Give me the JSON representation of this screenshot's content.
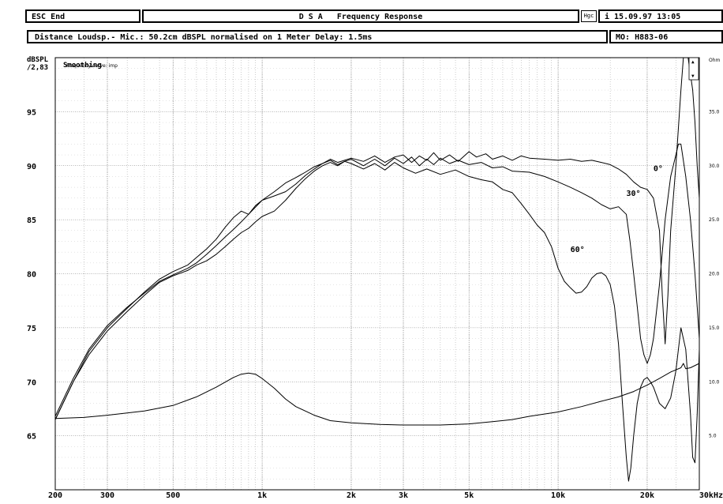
{
  "header": {
    "esc_label": "ESC End",
    "title": "D S A   Frequency Response",
    "hgc_label": "Hgc",
    "date_label": "i 15.09.97 13:05",
    "distance_info": "Distance Loudsp.- Mic.: 50.2cm dBSPL normalised on 1 Meter  Delay: 1.5ms",
    "model_label": "MO: H883-06"
  },
  "chart_data": {
    "type": "line",
    "ylabel": "dBSPL",
    "y_top_readout": "/2,83",
    "smoothing_label": "Smoothing",
    "legend_text": "Frequency curve: imp",
    "x_scale": "log",
    "xlim": [
      200,
      30000
    ],
    "ylim": [
      60,
      100
    ],
    "y2label": "Ohm",
    "y2lim": [
      0,
      40
    ],
    "x_ticks": [
      {
        "value": 200,
        "label": "200"
      },
      {
        "value": 300,
        "label": "300"
      },
      {
        "value": 500,
        "label": "500"
      },
      {
        "value": 1000,
        "label": "1k"
      },
      {
        "value": 2000,
        "label": "2k"
      },
      {
        "value": 3000,
        "label": "3k"
      },
      {
        "value": 5000,
        "label": "5k"
      },
      {
        "value": 10000,
        "label": "10k"
      },
      {
        "value": 20000,
        "label": "20k"
      },
      {
        "value": 30000,
        "label": "30kHz"
      }
    ],
    "y_ticks": [
      {
        "value": 95,
        "label": "95"
      },
      {
        "value": 90,
        "label": "90"
      },
      {
        "value": 85,
        "label": "85"
      },
      {
        "value": 80,
        "label": "80"
      },
      {
        "value": 75,
        "label": "75"
      },
      {
        "value": 70,
        "label": "70"
      },
      {
        "value": 65,
        "label": "65"
      }
    ],
    "y2_ticks": [
      {
        "value": 35,
        "label": "35.0"
      },
      {
        "value": 30,
        "label": "30.0"
      },
      {
        "value": 25,
        "label": "25.0"
      },
      {
        "value": 20,
        "label": "20.0"
      },
      {
        "value": 15,
        "label": "15.0"
      },
      {
        "value": 10,
        "label": "10.0"
      },
      {
        "value": 5,
        "label": "5.0"
      }
    ],
    "grid": true,
    "annotations": [
      {
        "text": "0°",
        "x": 21000,
        "y": 89.5
      },
      {
        "text": "30°",
        "x": 17000,
        "y": 87.2
      },
      {
        "text": "60°",
        "x": 11000,
        "y": 82.0
      }
    ],
    "series": [
      {
        "axis": "left",
        "values": [
          [
            200,
            66.5
          ],
          [
            230,
            70
          ],
          [
            260,
            72.8
          ],
          [
            300,
            75
          ],
          [
            350,
            76.8
          ],
          [
            400,
            78.3
          ],
          [
            450,
            79.5
          ],
          [
            500,
            80.2
          ],
          [
            560,
            80.8
          ],
          [
            600,
            81.5
          ],
          [
            650,
            82.3
          ],
          [
            700,
            83.2
          ],
          [
            750,
            84.3
          ],
          [
            800,
            85.2
          ],
          [
            850,
            85.8
          ],
          [
            900,
            85.5
          ],
          [
            950,
            86.3
          ],
          [
            1000,
            86.8
          ],
          [
            1100,
            87.2
          ],
          [
            1200,
            87.6
          ],
          [
            1300,
            88.3
          ],
          [
            1400,
            89.1
          ],
          [
            1500,
            89.7
          ],
          [
            1600,
            90.2
          ],
          [
            1700,
            90.6
          ],
          [
            1800,
            90.3
          ],
          [
            1900,
            90.5
          ],
          [
            2000,
            90.7
          ],
          [
            2200,
            90.4
          ],
          [
            2400,
            90.9
          ],
          [
            2600,
            90.3
          ],
          [
            2800,
            90.8
          ],
          [
            3000,
            91.0
          ],
          [
            3200,
            90.3
          ],
          [
            3400,
            90.9
          ],
          [
            3600,
            90.5
          ],
          [
            3800,
            91.2
          ],
          [
            4000,
            90.5
          ],
          [
            4300,
            91.0
          ],
          [
            4600,
            90.4
          ],
          [
            5000,
            91.3
          ],
          [
            5300,
            90.8
          ],
          [
            5700,
            91.1
          ],
          [
            6000,
            90.6
          ],
          [
            6500,
            90.9
          ],
          [
            7000,
            90.5
          ],
          [
            7500,
            90.9
          ],
          [
            8000,
            90.7
          ],
          [
            9000,
            90.6
          ],
          [
            10000,
            90.5
          ],
          [
            11000,
            90.6
          ],
          [
            12000,
            90.4
          ],
          [
            13000,
            90.5
          ],
          [
            14000,
            90.3
          ],
          [
            15000,
            90.1
          ],
          [
            16000,
            89.7
          ],
          [
            17000,
            89.2
          ],
          [
            18000,
            88.5
          ],
          [
            19000,
            88.0
          ],
          [
            20000,
            87.8
          ],
          [
            21000,
            87.0
          ],
          [
            22000,
            84.0
          ],
          [
            22500,
            78.0
          ],
          [
            23000,
            73.5
          ],
          [
            23500,
            78.0
          ],
          [
            24000,
            84.0
          ],
          [
            25000,
            90.0
          ],
          [
            26000,
            97.0
          ],
          [
            26500,
            100.0
          ],
          [
            27500,
            100.0
          ],
          [
            28500,
            97.0
          ],
          [
            29000,
            94.0
          ],
          [
            29500,
            90.0
          ],
          [
            30000,
            87.0
          ]
        ]
      },
      {
        "axis": "left",
        "values": [
          [
            200,
            66.8
          ],
          [
            230,
            70.3
          ],
          [
            260,
            73.0
          ],
          [
            300,
            75.2
          ],
          [
            350,
            76.9
          ],
          [
            400,
            78.2
          ],
          [
            450,
            79.3
          ],
          [
            500,
            79.9
          ],
          [
            560,
            80.5
          ],
          [
            600,
            81.0
          ],
          [
            650,
            81.8
          ],
          [
            700,
            82.6
          ],
          [
            750,
            83.4
          ],
          [
            800,
            84.1
          ],
          [
            850,
            84.8
          ],
          [
            900,
            85.5
          ],
          [
            1000,
            86.8
          ],
          [
            1100,
            87.6
          ],
          [
            1200,
            88.4
          ],
          [
            1300,
            88.9
          ],
          [
            1400,
            89.4
          ],
          [
            1500,
            89.9
          ],
          [
            1600,
            90.2
          ],
          [
            1700,
            90.5
          ],
          [
            1800,
            90.1
          ],
          [
            1900,
            90.4
          ],
          [
            2000,
            90.6
          ],
          [
            2200,
            90.0
          ],
          [
            2400,
            90.6
          ],
          [
            2600,
            90.0
          ],
          [
            2800,
            90.7
          ],
          [
            3000,
            90.2
          ],
          [
            3200,
            90.8
          ],
          [
            3400,
            90.0
          ],
          [
            3600,
            90.6
          ],
          [
            3800,
            90.1
          ],
          [
            4000,
            90.7
          ],
          [
            4300,
            90.2
          ],
          [
            4600,
            90.5
          ],
          [
            5000,
            90.1
          ],
          [
            5500,
            90.3
          ],
          [
            6000,
            89.8
          ],
          [
            6500,
            89.9
          ],
          [
            7000,
            89.5
          ],
          [
            8000,
            89.4
          ],
          [
            9000,
            89.0
          ],
          [
            10000,
            88.5
          ],
          [
            11000,
            88.0
          ],
          [
            12000,
            87.5
          ],
          [
            13000,
            87.0
          ],
          [
            14000,
            86.4
          ],
          [
            15000,
            86.0
          ],
          [
            16000,
            86.2
          ],
          [
            17000,
            85.5
          ],
          [
            17500,
            83.0
          ],
          [
            18000,
            80.0
          ],
          [
            18500,
            77.0
          ],
          [
            19000,
            74.0
          ],
          [
            19500,
            72.5
          ],
          [
            20000,
            71.7
          ],
          [
            20500,
            72.5
          ],
          [
            21000,
            74.0
          ],
          [
            22000,
            79.0
          ],
          [
            23000,
            85.0
          ],
          [
            24000,
            89.0
          ],
          [
            25000,
            91.0
          ],
          [
            25500,
            92.0
          ],
          [
            26000,
            92.0
          ],
          [
            27000,
            89.0
          ],
          [
            28000,
            85.0
          ],
          [
            29000,
            80.0
          ],
          [
            30000,
            74.0
          ]
        ]
      },
      {
        "axis": "left",
        "values": [
          [
            200,
            66.5
          ],
          [
            230,
            70
          ],
          [
            260,
            72.5
          ],
          [
            300,
            74.7
          ],
          [
            350,
            76.5
          ],
          [
            400,
            78.0
          ],
          [
            450,
            79.2
          ],
          [
            500,
            79.8
          ],
          [
            560,
            80.3
          ],
          [
            600,
            80.8
          ],
          [
            650,
            81.2
          ],
          [
            700,
            81.8
          ],
          [
            750,
            82.5
          ],
          [
            800,
            83.2
          ],
          [
            850,
            83.8
          ],
          [
            900,
            84.2
          ],
          [
            950,
            84.8
          ],
          [
            1000,
            85.3
          ],
          [
            1100,
            85.8
          ],
          [
            1200,
            86.8
          ],
          [
            1300,
            87.9
          ],
          [
            1400,
            88.8
          ],
          [
            1500,
            89.5
          ],
          [
            1600,
            90.0
          ],
          [
            1700,
            90.3
          ],
          [
            1800,
            90.0
          ],
          [
            1900,
            90.4
          ],
          [
            2000,
            90.2
          ],
          [
            2200,
            89.7
          ],
          [
            2400,
            90.2
          ],
          [
            2600,
            89.6
          ],
          [
            2800,
            90.3
          ],
          [
            3000,
            89.8
          ],
          [
            3300,
            89.3
          ],
          [
            3600,
            89.7
          ],
          [
            4000,
            89.2
          ],
          [
            4500,
            89.6
          ],
          [
            5000,
            89.0
          ],
          [
            5500,
            88.7
          ],
          [
            6000,
            88.5
          ],
          [
            6500,
            87.8
          ],
          [
            7000,
            87.5
          ],
          [
            7500,
            86.5
          ],
          [
            8000,
            85.5
          ],
          [
            8500,
            84.5
          ],
          [
            9000,
            83.8
          ],
          [
            9500,
            82.5
          ],
          [
            10000,
            80.5
          ],
          [
            10500,
            79.3
          ],
          [
            11000,
            78.7
          ],
          [
            11500,
            78.2
          ],
          [
            12000,
            78.3
          ],
          [
            12500,
            78.8
          ],
          [
            13000,
            79.6
          ],
          [
            13500,
            80.0
          ],
          [
            14000,
            80.1
          ],
          [
            14500,
            79.8
          ],
          [
            15000,
            79.0
          ],
          [
            15500,
            77.0
          ],
          [
            16000,
            73.5
          ],
          [
            16500,
            68.0
          ],
          [
            17000,
            63.0
          ],
          [
            17300,
            60.8
          ],
          [
            17600,
            62.0
          ],
          [
            18000,
            65.0
          ],
          [
            18500,
            68.0
          ],
          [
            19000,
            69.5
          ],
          [
            19500,
            70.2
          ],
          [
            20000,
            70.4
          ],
          [
            20500,
            70.0
          ],
          [
            21000,
            69.5
          ],
          [
            22000,
            68.0
          ],
          [
            23000,
            67.5
          ],
          [
            24000,
            68.5
          ],
          [
            25000,
            71.0
          ],
          [
            26000,
            75.0
          ],
          [
            27000,
            73.0
          ],
          [
            28000,
            67.0
          ],
          [
            28500,
            63.0
          ],
          [
            29000,
            62.5
          ],
          [
            29500,
            67.0
          ],
          [
            30000,
            73.0
          ]
        ]
      },
      {
        "axis": "right",
        "values": [
          [
            200,
            6.6
          ],
          [
            250,
            6.7
          ],
          [
            300,
            6.9
          ],
          [
            400,
            7.3
          ],
          [
            500,
            7.8
          ],
          [
            600,
            8.6
          ],
          [
            700,
            9.5
          ],
          [
            800,
            10.4
          ],
          [
            850,
            10.7
          ],
          [
            900,
            10.8
          ],
          [
            950,
            10.7
          ],
          [
            1000,
            10.3
          ],
          [
            1100,
            9.4
          ],
          [
            1200,
            8.4
          ],
          [
            1300,
            7.7
          ],
          [
            1500,
            6.9
          ],
          [
            1700,
            6.4
          ],
          [
            2000,
            6.2
          ],
          [
            2500,
            6.05
          ],
          [
            3000,
            6.0
          ],
          [
            4000,
            6.0
          ],
          [
            5000,
            6.1
          ],
          [
            6000,
            6.3
          ],
          [
            7000,
            6.5
          ],
          [
            8000,
            6.8
          ],
          [
            10000,
            7.2
          ],
          [
            12000,
            7.7
          ],
          [
            14000,
            8.2
          ],
          [
            16000,
            8.6
          ],
          [
            18000,
            9.1
          ],
          [
            20000,
            9.7
          ],
          [
            22000,
            10.3
          ],
          [
            24000,
            10.9
          ],
          [
            26000,
            11.3
          ],
          [
            26500,
            11.7
          ],
          [
            27000,
            11.2
          ],
          [
            28000,
            11.3
          ],
          [
            30000,
            11.7
          ]
        ]
      }
    ]
  }
}
